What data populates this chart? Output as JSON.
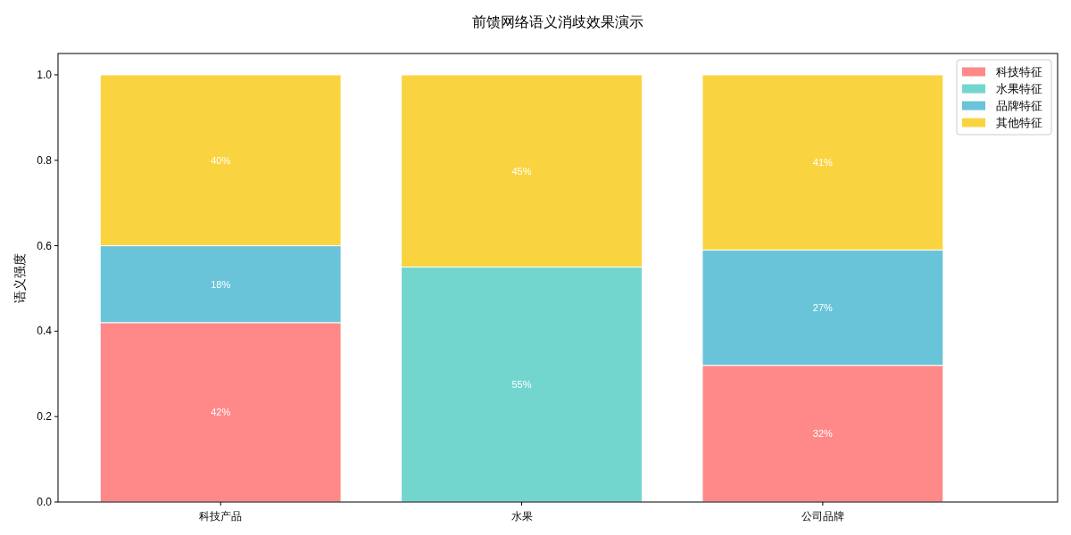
{
  "chart_data": {
    "type": "bar",
    "title": "前馈网络语义消歧效果演示",
    "ylabel": "语义强度",
    "categories": [
      "科技产品",
      "水果",
      "公司品牌"
    ],
    "stacked": true,
    "series": [
      {
        "name": "科技特征",
        "color": "#ff8989",
        "values": [
          0.42,
          0,
          0.32
        ],
        "value_labels": [
          "42%",
          null,
          "32%"
        ]
      },
      {
        "name": "水果特征",
        "color": "#72d6cf",
        "values": [
          0,
          0.55,
          0
        ],
        "value_labels": [
          null,
          "55%",
          null
        ]
      },
      {
        "name": "品牌特征",
        "color": "#69c4d9",
        "values": [
          0.18,
          0,
          0.27
        ],
        "value_labels": [
          "18%",
          null,
          "27%"
        ]
      },
      {
        "name": "其他特征",
        "color": "#fad440",
        "values": [
          0.4,
          0.45,
          0.41
        ],
        "value_labels": [
          "40%",
          "45%",
          "41%"
        ]
      }
    ],
    "ylim": [
      0,
      1.05
    ],
    "yticks": [
      {
        "value": 0,
        "label": "0.0"
      },
      0.2,
      0.4,
      0.6,
      0.8,
      {
        "value": 1,
        "label": "1.0"
      }
    ],
    "legend": "top right"
  }
}
